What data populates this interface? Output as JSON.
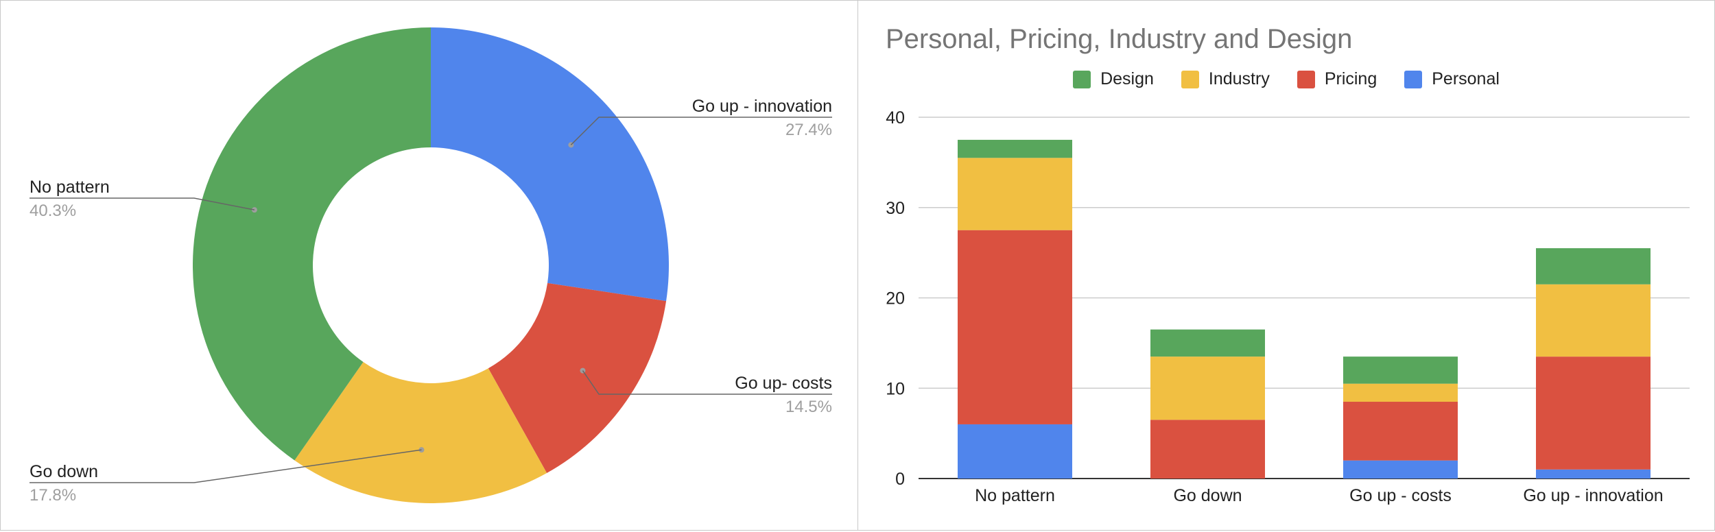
{
  "chart_data": [
    {
      "type": "pie",
      "donut": true,
      "slices": [
        {
          "label": "Go up - innovation",
          "percent_label": "27.4%",
          "value": 27.4,
          "color": "#5085ec"
        },
        {
          "label": "Go up- costs",
          "percent_label": "14.5%",
          "value": 14.5,
          "color": "#da5140"
        },
        {
          "label": "Go down",
          "percent_label": "17.8%",
          "value": 17.8,
          "color": "#f1bf42"
        },
        {
          "label": "No pattern",
          "percent_label": "40.3%",
          "value": 40.3,
          "color": "#58a65c"
        }
      ]
    },
    {
      "type": "bar",
      "stacked": true,
      "title": "Personal, Pricing, Industry and Design",
      "categories": [
        "No pattern",
        "Go down",
        "Go up - costs",
        "Go up - innovation"
      ],
      "series": [
        {
          "name": "Personal",
          "color": "#5085ec",
          "values": [
            6,
            0,
            2,
            1
          ]
        },
        {
          "name": "Pricing",
          "color": "#da5140",
          "values": [
            21.5,
            6.5,
            6.5,
            12.5
          ]
        },
        {
          "name": "Industry",
          "color": "#f1bf42",
          "values": [
            8,
            7,
            2,
            8
          ]
        },
        {
          "name": "Design",
          "color": "#58a65c",
          "values": [
            2,
            3,
            3,
            4
          ]
        }
      ],
      "legend_order": [
        "Design",
        "Industry",
        "Pricing",
        "Personal"
      ],
      "legend_position": "top",
      "yticks": [
        0,
        10,
        20,
        30,
        40
      ],
      "ylim": [
        0,
        40
      ],
      "grid": true
    }
  ]
}
